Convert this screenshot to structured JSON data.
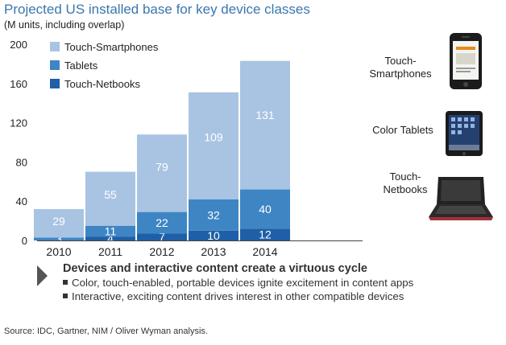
{
  "header": {
    "title": "Projected US installed base for key device classes",
    "subtitle": "(M units, including overlap)"
  },
  "colors": {
    "smartphones": "#a9c4e2",
    "tablets": "#3e85c4",
    "netbooks": "#1f5fa7",
    "title": "#3a76ae"
  },
  "chart_data": {
    "type": "bar",
    "stacked": true,
    "title": "Projected US installed base for key device classes",
    "ylabel": "(M units, including overlap)",
    "categories": [
      "2010",
      "2011",
      "2012",
      "2013",
      "2014"
    ],
    "series": [
      {
        "name": "Touch-Netbooks",
        "values": [
          0,
          4,
          7,
          10,
          12
        ]
      },
      {
        "name": "Tablets",
        "values": [
          3,
          11,
          22,
          32,
          40
        ]
      },
      {
        "name": "Touch-Smartphones",
        "values": [
          29,
          55,
          79,
          109,
          131
        ]
      }
    ],
    "data_labels": [
      [
        "",
        "4",
        "7",
        "10",
        "12"
      ],
      [
        "3",
        "11",
        "22",
        "32",
        "40"
      ],
      [
        "29",
        "55",
        "79",
        "109",
        "131"
      ]
    ],
    "ylim": [
      0,
      200
    ],
    "yticks": [
      0,
      40,
      80,
      120,
      160,
      200
    ],
    "legend_position": "top-left",
    "grid": false
  },
  "side_labels": {
    "smartphones": "Touch-\nSmartphones",
    "tablets": "Color Tablets",
    "netbooks": "Touch-\nNetbooks"
  },
  "callout": {
    "heading": "Devices and interactive content create a virtuous cycle",
    "bullets": [
      "Color, touch-enabled, portable devices ignite excitement in content apps",
      "Interactive, exciting content drives interest in other compatible devices"
    ]
  },
  "source": "Source: IDC, Gartner, NIM / Oliver Wyman analysis."
}
